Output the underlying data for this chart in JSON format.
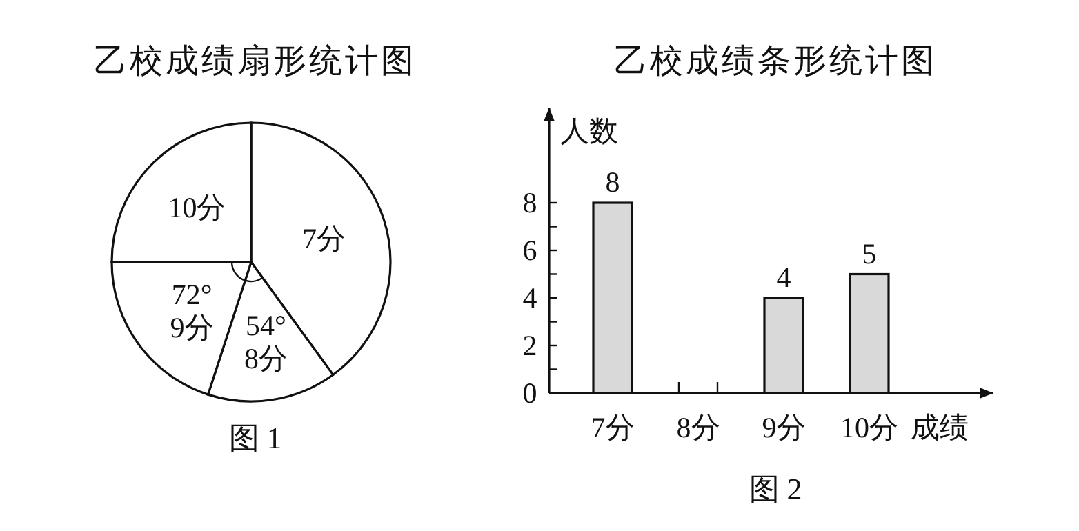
{
  "chart_data": [
    {
      "type": "pie",
      "title": "乙校成绩扇形统计图",
      "categories": [
        "7分",
        "8分",
        "9分",
        "10分"
      ],
      "values": [
        144,
        54,
        72,
        90
      ],
      "colors": [
        "#ffffff",
        "#ffffff",
        "#ffffff",
        "#ffffff"
      ],
      "value_labels": [
        null,
        "54°",
        "72°",
        null
      ],
      "annotations": [
        "图 1"
      ]
    },
    {
      "type": "bar",
      "title": "乙校成绩条形统计图",
      "categories": [
        "7分",
        "8分",
        "9分",
        "10分"
      ],
      "values": [
        8,
        null,
        4,
        5
      ],
      "color": "#d9d9d9",
      "data_labels": true,
      "xlabel": "成绩",
      "ylabel": "人数",
      "ylim": [
        0,
        12
      ],
      "yticks": [
        0,
        {
          "value": 1,
          "label": null
        },
        2,
        {
          "value": 3,
          "label": null
        },
        4,
        {
          "value": 5,
          "label": null
        },
        6,
        {
          "value": 7,
          "label": null
        },
        8
      ],
      "grid": false,
      "annotations": [
        "图 2"
      ]
    }
  ]
}
